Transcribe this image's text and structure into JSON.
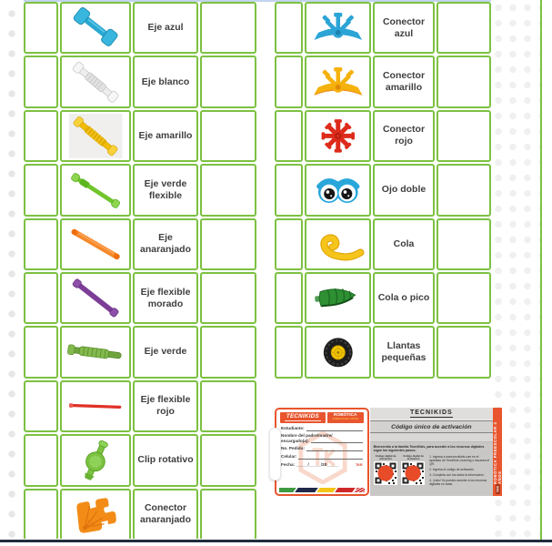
{
  "tables": {
    "left": {
      "rows": [
        {
          "icon": "eje-azul",
          "label": "Eje azul"
        },
        {
          "icon": "eje-blanco",
          "label": "Eje blanco"
        },
        {
          "icon": "eje-amarillo",
          "label": "Eje amarillo"
        },
        {
          "icon": "eje-verde-flexible",
          "label": "Eje verde flexible"
        },
        {
          "icon": "eje-anaranjado",
          "label": "Eje anaranjado"
        },
        {
          "icon": "eje-flexible-morado",
          "label": "Eje flexible morado"
        },
        {
          "icon": "eje-verde",
          "label": "Eje verde"
        },
        {
          "icon": "eje-flexible-rojo",
          "label": "Eje flexible rojo"
        },
        {
          "icon": "clip-rotativo",
          "label": "Clip rotativo"
        },
        {
          "icon": "conector-anaranjado",
          "label": "Conector anaranjado"
        }
      ]
    },
    "right": {
      "rows": [
        {
          "icon": "conector-azul",
          "label": "Conector azul"
        },
        {
          "icon": "conector-amarillo",
          "label": "Conector amarillo"
        },
        {
          "icon": "conector-rojo",
          "label": "Conector rojo"
        },
        {
          "icon": "ojo-doble",
          "label": "Ojo doble"
        },
        {
          "icon": "cola",
          "label": "Cola"
        },
        {
          "icon": "cola-o-pico",
          "label": "Cola o pico"
        },
        {
          "icon": "llantas-pequenas",
          "label": "Llantas pequeñas"
        }
      ]
    }
  },
  "card": {
    "left": {
      "brand": "TECNIKIDS",
      "program": "ROBÓTICA",
      "program_subtitle": "(PREESCOLAR 4 AÑOS)",
      "fields": {
        "estudiante": "Estudiante:",
        "nombre_1": "Nombre del padre/madre/",
        "nombre_2": "encargado(a):",
        "pedido": "No. Pedido:",
        "celular": "Celular:",
        "fecha_label": "Fecha:",
        "fecha_value": "_____/_____/20_____"
      },
      "code": "TKR"
    },
    "right": {
      "brand": "TECNIKIDS",
      "title": "Código único de activación",
      "intro": "Bienvenido a la familia TecniKids, para acceder a los recursos digitales sigue los siguientes pasos:",
      "qr_label_1": "Código digital de activación",
      "qr_label_2": "Código digital de activación",
      "steps": [
        "1. Ingresa a www.tecnikids.com en el apartado de TecniKids Learning o escanea el QR.",
        "2. Ingresa el código de activación.",
        "3. Completa con tus datos la información.",
        "4. ¡Listo! Ya puedes acceder a los recursos digitales en clase."
      ],
      "side_label": "ROBÓTICA PREESCOLAR 4 AÑOS",
      "side_code": "TKR"
    }
  },
  "colors": {
    "table_border": "#7cc142",
    "card_orange": "#e8552e",
    "bottom_line": "#222c3e",
    "top_line": "#c3d4ee",
    "qr_sticker": "#e84b28"
  }
}
